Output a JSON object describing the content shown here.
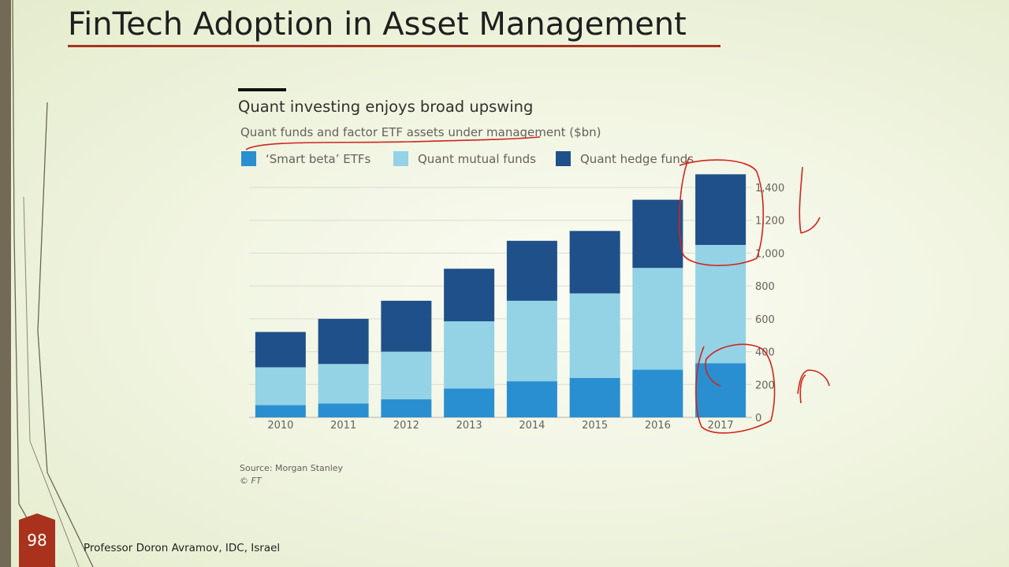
{
  "slide": {
    "title": "FinTech Adoption in Asset Management",
    "footer": "Professor Doron Avramov, IDC, Israel",
    "page_number": "98"
  },
  "colors": {
    "smart_beta": "#2a8fd0",
    "mutual": "#94d2e6",
    "hedge": "#1f5089",
    "title_rule": "#a43420",
    "annotation": "#d0251e",
    "page_badge": "#a8321c"
  },
  "chart_data": {
    "type": "bar",
    "stacked": true,
    "title": "Quant investing enjoys broad upswing",
    "subtitle": "Quant funds and factor ETF assets under management ($bn)",
    "categories": [
      "2010",
      "2011",
      "2012",
      "2013",
      "2014",
      "2015",
      "2016",
      "2017"
    ],
    "series": [
      {
        "name": "‘Smart beta’ ETFs",
        "color": "#2a8fd0",
        "values": [
          75,
          85,
          110,
          175,
          220,
          240,
          290,
          330
        ]
      },
      {
        "name": "Quant mutual funds",
        "color": "#94d2e6",
        "values": [
          230,
          240,
          290,
          410,
          490,
          515,
          620,
          720
        ]
      },
      {
        "name": "Quant hedge funds",
        "color": "#1f5089",
        "values": [
          215,
          275,
          310,
          320,
          365,
          380,
          415,
          430
        ]
      }
    ],
    "ylim": [
      0,
      1400
    ],
    "yticks": [
      0,
      200,
      400,
      600,
      800,
      1000,
      1200,
      1400
    ],
    "ytick_labels": [
      "0",
      "200",
      "400",
      "600",
      "800",
      "1,000",
      "1,200",
      "1,400"
    ],
    "ylabel": "",
    "xlabel": "",
    "grid": true,
    "legend_position": "top"
  },
  "source": {
    "line1": "Source: Morgan Stanley",
    "line2": "© FT"
  }
}
